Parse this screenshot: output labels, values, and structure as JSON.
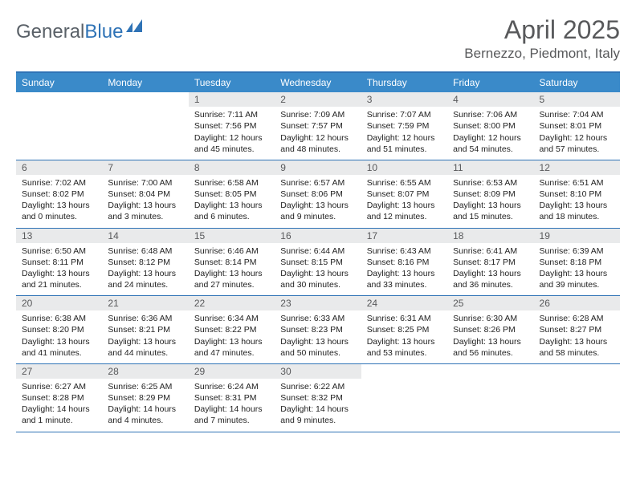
{
  "brand": {
    "part1": "General",
    "part2": "Blue"
  },
  "title": "April 2025",
  "location": "Bernezzo, Piedmont, Italy",
  "colors": {
    "header_bg": "#3a8ac9",
    "header_border": "#2f73b6",
    "daynum_bg": "#e9eaeb",
    "text_muted": "#58595b",
    "brand_blue": "#2f73b6"
  },
  "fonts": {
    "body": "Arial",
    "title_size": 32,
    "location_size": 17,
    "header_size": 12,
    "cell_size": 10.5
  },
  "day_names": [
    "Sunday",
    "Monday",
    "Tuesday",
    "Wednesday",
    "Thursday",
    "Friday",
    "Saturday"
  ],
  "weeks": [
    [
      null,
      null,
      {
        "n": "1",
        "sunrise": "7:11 AM",
        "sunset": "7:56 PM",
        "daylight": "12 hours and 45 minutes."
      },
      {
        "n": "2",
        "sunrise": "7:09 AM",
        "sunset": "7:57 PM",
        "daylight": "12 hours and 48 minutes."
      },
      {
        "n": "3",
        "sunrise": "7:07 AM",
        "sunset": "7:59 PM",
        "daylight": "12 hours and 51 minutes."
      },
      {
        "n": "4",
        "sunrise": "7:06 AM",
        "sunset": "8:00 PM",
        "daylight": "12 hours and 54 minutes."
      },
      {
        "n": "5",
        "sunrise": "7:04 AM",
        "sunset": "8:01 PM",
        "daylight": "12 hours and 57 minutes."
      }
    ],
    [
      {
        "n": "6",
        "sunrise": "7:02 AM",
        "sunset": "8:02 PM",
        "daylight": "13 hours and 0 minutes."
      },
      {
        "n": "7",
        "sunrise": "7:00 AM",
        "sunset": "8:04 PM",
        "daylight": "13 hours and 3 minutes."
      },
      {
        "n": "8",
        "sunrise": "6:58 AM",
        "sunset": "8:05 PM",
        "daylight": "13 hours and 6 minutes."
      },
      {
        "n": "9",
        "sunrise": "6:57 AM",
        "sunset": "8:06 PM",
        "daylight": "13 hours and 9 minutes."
      },
      {
        "n": "10",
        "sunrise": "6:55 AM",
        "sunset": "8:07 PM",
        "daylight": "13 hours and 12 minutes."
      },
      {
        "n": "11",
        "sunrise": "6:53 AM",
        "sunset": "8:09 PM",
        "daylight": "13 hours and 15 minutes."
      },
      {
        "n": "12",
        "sunrise": "6:51 AM",
        "sunset": "8:10 PM",
        "daylight": "13 hours and 18 minutes."
      }
    ],
    [
      {
        "n": "13",
        "sunrise": "6:50 AM",
        "sunset": "8:11 PM",
        "daylight": "13 hours and 21 minutes."
      },
      {
        "n": "14",
        "sunrise": "6:48 AM",
        "sunset": "8:12 PM",
        "daylight": "13 hours and 24 minutes."
      },
      {
        "n": "15",
        "sunrise": "6:46 AM",
        "sunset": "8:14 PM",
        "daylight": "13 hours and 27 minutes."
      },
      {
        "n": "16",
        "sunrise": "6:44 AM",
        "sunset": "8:15 PM",
        "daylight": "13 hours and 30 minutes."
      },
      {
        "n": "17",
        "sunrise": "6:43 AM",
        "sunset": "8:16 PM",
        "daylight": "13 hours and 33 minutes."
      },
      {
        "n": "18",
        "sunrise": "6:41 AM",
        "sunset": "8:17 PM",
        "daylight": "13 hours and 36 minutes."
      },
      {
        "n": "19",
        "sunrise": "6:39 AM",
        "sunset": "8:18 PM",
        "daylight": "13 hours and 39 minutes."
      }
    ],
    [
      {
        "n": "20",
        "sunrise": "6:38 AM",
        "sunset": "8:20 PM",
        "daylight": "13 hours and 41 minutes."
      },
      {
        "n": "21",
        "sunrise": "6:36 AM",
        "sunset": "8:21 PM",
        "daylight": "13 hours and 44 minutes."
      },
      {
        "n": "22",
        "sunrise": "6:34 AM",
        "sunset": "8:22 PM",
        "daylight": "13 hours and 47 minutes."
      },
      {
        "n": "23",
        "sunrise": "6:33 AM",
        "sunset": "8:23 PM",
        "daylight": "13 hours and 50 minutes."
      },
      {
        "n": "24",
        "sunrise": "6:31 AM",
        "sunset": "8:25 PM",
        "daylight": "13 hours and 53 minutes."
      },
      {
        "n": "25",
        "sunrise": "6:30 AM",
        "sunset": "8:26 PM",
        "daylight": "13 hours and 56 minutes."
      },
      {
        "n": "26",
        "sunrise": "6:28 AM",
        "sunset": "8:27 PM",
        "daylight": "13 hours and 58 minutes."
      }
    ],
    [
      {
        "n": "27",
        "sunrise": "6:27 AM",
        "sunset": "8:28 PM",
        "daylight": "14 hours and 1 minute."
      },
      {
        "n": "28",
        "sunrise": "6:25 AM",
        "sunset": "8:29 PM",
        "daylight": "14 hours and 4 minutes."
      },
      {
        "n": "29",
        "sunrise": "6:24 AM",
        "sunset": "8:31 PM",
        "daylight": "14 hours and 7 minutes."
      },
      {
        "n": "30",
        "sunrise": "6:22 AM",
        "sunset": "8:32 PM",
        "daylight": "14 hours and 9 minutes."
      },
      null,
      null,
      null
    ]
  ],
  "labels": {
    "sunrise": "Sunrise:",
    "sunset": "Sunset:",
    "daylight": "Daylight:"
  }
}
